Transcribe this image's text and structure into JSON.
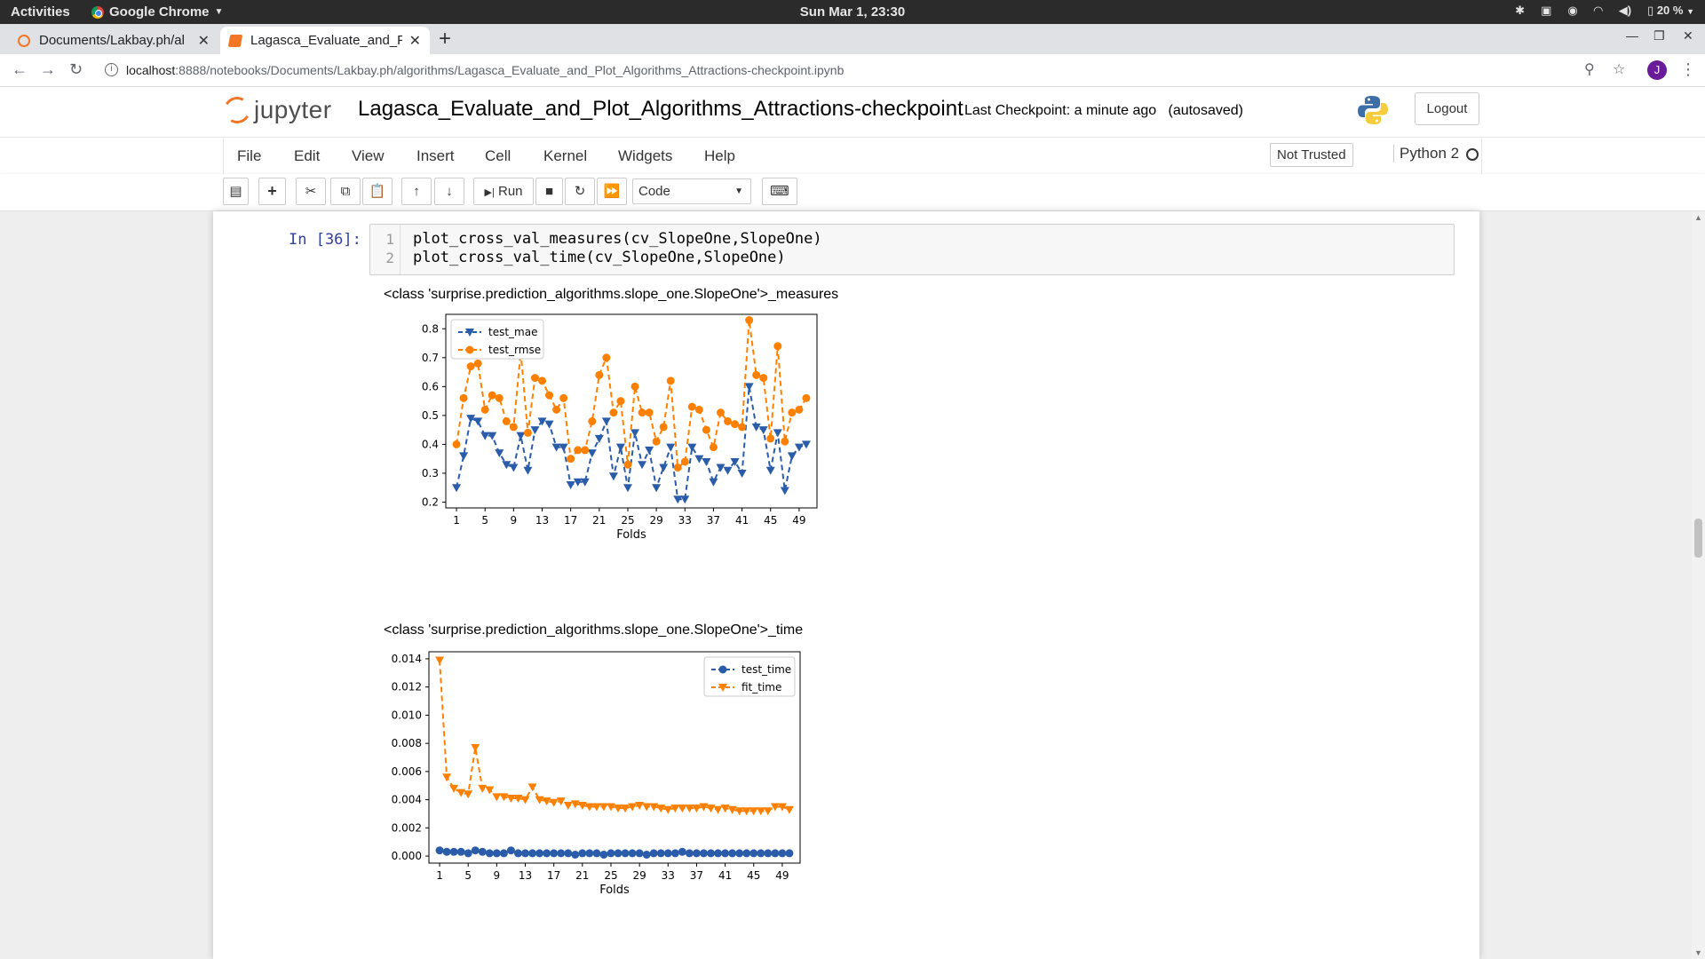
{
  "topbar": {
    "activities": "Activities",
    "app_menu": "Google Chrome",
    "clock": "Sun Mar  1, 23:30",
    "battery": "20 %"
  },
  "tabs": [
    {
      "title": "Documents/Lakbay.ph/al",
      "active": false
    },
    {
      "title": "Lagasca_Evaluate_and_Pl",
      "active": true
    }
  ],
  "address": {
    "host": "localhost",
    "rest": ":8888/notebooks/Documents/Lakbay.ph/algorithms/Lagasca_Evaluate_and_Plot_Algorithms_Attractions-checkpoint.ipynb",
    "profile_initial": "J"
  },
  "jupyter": {
    "logo_text": "jupyter",
    "notebook_name": "Lagasca_Evaluate_and_Plot_Algorithms_Attractions-checkpoint",
    "checkpoint": "Last Checkpoint: a minute ago",
    "autosave": "(autosaved)",
    "logout": "Logout",
    "menus": [
      "File",
      "Edit",
      "View",
      "Insert",
      "Cell",
      "Kernel",
      "Widgets",
      "Help"
    ],
    "trust": "Not Trusted",
    "kernel": "Python 2",
    "run_label": "Run",
    "cell_type": "Code"
  },
  "cell": {
    "prompt": "In [36]:",
    "line_numbers": [
      "1",
      "2"
    ],
    "code": [
      "plot_cross_val_measures(cv_SlopeOne,SlopeOne)",
      "plot_cross_val_time(cv_SlopeOne,SlopeOne)"
    ],
    "output_title_1": "<class 'surprise.prediction_algorithms.slope_one.SlopeOne'>_measures",
    "output_title_2": "<class 'surprise.prediction_algorithms.slope_one.SlopeOne'>_time"
  },
  "chart_data": [
    {
      "type": "line",
      "xlabel": "Folds",
      "ylabel": "",
      "x": [
        1,
        2,
        3,
        4,
        5,
        6,
        7,
        8,
        9,
        10,
        11,
        12,
        13,
        14,
        15,
        16,
        17,
        18,
        19,
        20,
        21,
        22,
        23,
        24,
        25,
        26,
        27,
        28,
        29,
        30,
        31,
        32,
        33,
        34,
        35,
        36,
        37,
        38,
        39,
        40,
        41,
        42,
        43,
        44,
        45,
        46,
        47,
        48,
        49,
        50
      ],
      "xticks": [
        1,
        5,
        9,
        13,
        17,
        21,
        25,
        29,
        33,
        37,
        41,
        45,
        49
      ],
      "ylim": [
        0.18,
        0.85
      ],
      "yticks": [
        0.2,
        0.3,
        0.4,
        0.5,
        0.6,
        0.7,
        0.8
      ],
      "legend_position": "top-left",
      "series": [
        {
          "name": "test_mae",
          "color": "#2a5caa",
          "marker": "triangle-down",
          "values": [
            0.25,
            0.36,
            0.49,
            0.48,
            0.43,
            0.43,
            0.37,
            0.33,
            0.32,
            0.43,
            0.31,
            0.45,
            0.48,
            0.47,
            0.39,
            0.39,
            0.26,
            0.27,
            0.27,
            0.37,
            0.42,
            0.48,
            0.29,
            0.39,
            0.25,
            0.44,
            0.33,
            0.38,
            0.25,
            0.32,
            0.39,
            0.21,
            0.21,
            0.39,
            0.35,
            0.34,
            0.27,
            0.32,
            0.31,
            0.34,
            0.3,
            0.6,
            0.46,
            0.45,
            0.31,
            0.44,
            0.24,
            0.36,
            0.39,
            0.4
          ]
        },
        {
          "name": "test_rmse",
          "color": "#ff8000",
          "marker": "circle",
          "values": [
            0.4,
            0.56,
            0.67,
            0.68,
            0.52,
            0.57,
            0.56,
            0.48,
            0.46,
            0.72,
            0.44,
            0.63,
            0.62,
            0.57,
            0.52,
            0.56,
            0.35,
            0.38,
            0.38,
            0.48,
            0.64,
            0.7,
            0.51,
            0.55,
            0.33,
            0.6,
            0.51,
            0.51,
            0.41,
            0.46,
            0.62,
            0.32,
            0.34,
            0.53,
            0.52,
            0.45,
            0.39,
            0.51,
            0.48,
            0.47,
            0.46,
            0.83,
            0.64,
            0.63,
            0.42,
            0.74,
            0.41,
            0.51,
            0.52,
            0.56
          ]
        }
      ]
    },
    {
      "type": "line",
      "xlabel": "Folds",
      "ylabel": "",
      "x": [
        1,
        2,
        3,
        4,
        5,
        6,
        7,
        8,
        9,
        10,
        11,
        12,
        13,
        14,
        15,
        16,
        17,
        18,
        19,
        20,
        21,
        22,
        23,
        24,
        25,
        26,
        27,
        28,
        29,
        30,
        31,
        32,
        33,
        34,
        35,
        36,
        37,
        38,
        39,
        40,
        41,
        42,
        43,
        44,
        45,
        46,
        47,
        48,
        49,
        50
      ],
      "xticks": [
        1,
        5,
        9,
        13,
        17,
        21,
        25,
        29,
        33,
        37,
        41,
        45,
        49
      ],
      "ylim": [
        -0.0005,
        0.0145
      ],
      "yticks": [
        0.0,
        0.002,
        0.004,
        0.006,
        0.008,
        0.01,
        0.012,
        0.014
      ],
      "legend_position": "top-right",
      "series": [
        {
          "name": "test_time",
          "color": "#2a5caa",
          "marker": "circle",
          "values": [
            0.0004,
            0.0003,
            0.0003,
            0.0003,
            0.0002,
            0.0004,
            0.0003,
            0.0002,
            0.0002,
            0.0002,
            0.0004,
            0.0002,
            0.0002,
            0.0002,
            0.0002,
            0.0002,
            0.0002,
            0.0002,
            0.0002,
            0.0001,
            0.0002,
            0.0002,
            0.0002,
            0.0001,
            0.0002,
            0.0002,
            0.0002,
            0.0002,
            0.0002,
            0.0001,
            0.0002,
            0.0002,
            0.0002,
            0.0002,
            0.0003,
            0.0002,
            0.0002,
            0.0002,
            0.0002,
            0.0002,
            0.0002,
            0.0002,
            0.0002,
            0.0002,
            0.0002,
            0.0002,
            0.0002,
            0.0002,
            0.0002,
            0.0002
          ]
        },
        {
          "name": "fit_time",
          "color": "#ff8000",
          "marker": "triangle-down",
          "values": [
            0.0139,
            0.0056,
            0.0048,
            0.0045,
            0.0044,
            0.0077,
            0.0048,
            0.0047,
            0.0042,
            0.0042,
            0.0041,
            0.0041,
            0.004,
            0.0049,
            0.004,
            0.0039,
            0.0038,
            0.0039,
            0.0036,
            0.0037,
            0.0036,
            0.0035,
            0.0035,
            0.0035,
            0.0035,
            0.0034,
            0.0034,
            0.0035,
            0.0036,
            0.0035,
            0.0035,
            0.0034,
            0.0033,
            0.0034,
            0.0034,
            0.0034,
            0.0034,
            0.0035,
            0.0034,
            0.0033,
            0.0034,
            0.0033,
            0.0032,
            0.0032,
            0.0032,
            0.0032,
            0.0032,
            0.0035,
            0.0035,
            0.0033
          ]
        }
      ]
    }
  ]
}
